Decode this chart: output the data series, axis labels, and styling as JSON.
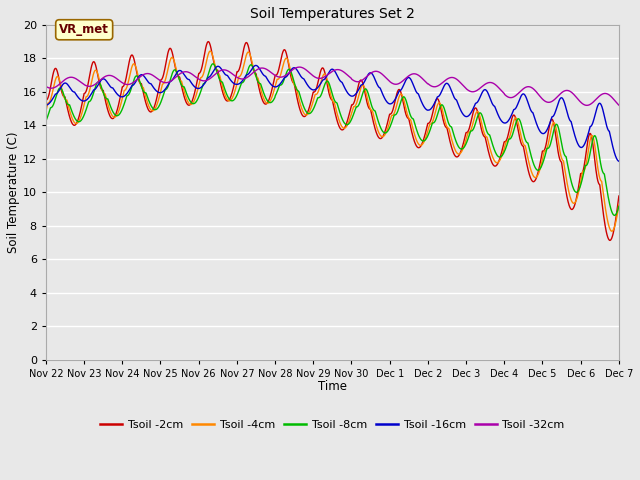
{
  "title": "Soil Temperatures Set 2",
  "xlabel": "Time",
  "ylabel": "Soil Temperature (C)",
  "ylim": [
    0,
    20
  ],
  "yticks": [
    0,
    2,
    4,
    6,
    8,
    10,
    12,
    14,
    16,
    18,
    20
  ],
  "plot_bg_color": "#e8e8e8",
  "colors": {
    "2cm": "#cc0000",
    "4cm": "#ff8800",
    "8cm": "#00bb00",
    "16cm": "#0000cc",
    "32cm": "#aa00aa"
  },
  "xtick_labels": [
    "Nov 22",
    "Nov 23",
    "Nov 24",
    "Nov 25",
    "Nov 26",
    "Nov 27",
    "Nov 28",
    "Nov 29",
    "Nov 30",
    "Dec 1",
    "Dec 2",
    "Dec 3",
    "Dec 4",
    "Dec 5",
    "Dec 6",
    "Dec 7"
  ],
  "series_labels": [
    "Tsoil -2cm",
    "Tsoil -4cm",
    "Tsoil -8cm",
    "Tsoil -16cm",
    "Tsoil -32cm"
  ],
  "annotation": "VR_met",
  "figsize": [
    6.4,
    4.8
  ],
  "dpi": 100
}
